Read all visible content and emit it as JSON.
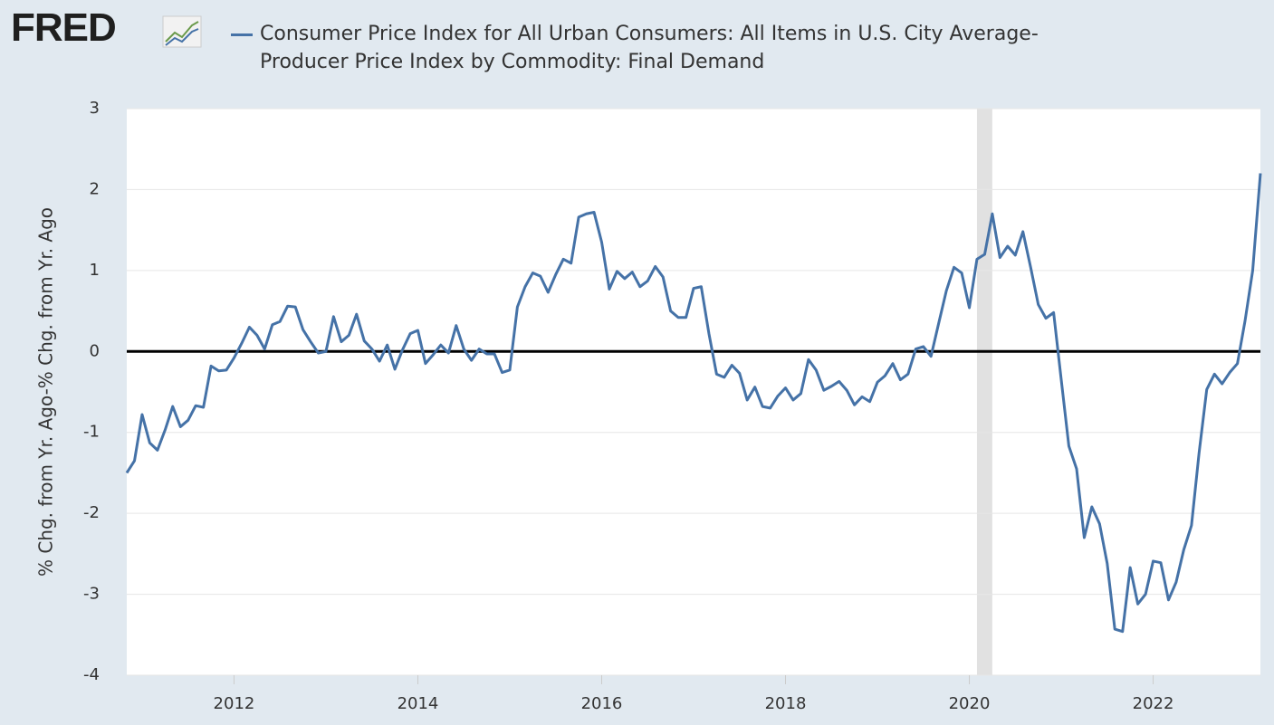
{
  "logo": "FRED",
  "chart_data": {
    "type": "line",
    "y_axis_label": "% Chg. from Yr. Ago-% Chg. from Yr. Ago",
    "x": [
      2010.833,
      2010.917,
      2011.0,
      2011.083,
      2011.167,
      2011.25,
      2011.333,
      2011.417,
      2011.5,
      2011.583,
      2011.667,
      2011.75,
      2011.833,
      2011.917,
      2012.0,
      2012.083,
      2012.167,
      2012.25,
      2012.333,
      2012.417,
      2012.5,
      2012.583,
      2012.667,
      2012.75,
      2012.833,
      2012.917,
      2013.0,
      2013.083,
      2013.167,
      2013.25,
      2013.333,
      2013.417,
      2013.5,
      2013.583,
      2013.667,
      2013.75,
      2013.833,
      2013.917,
      2014.0,
      2014.083,
      2014.167,
      2014.25,
      2014.333,
      2014.417,
      2014.5,
      2014.583,
      2014.667,
      2014.75,
      2014.833,
      2014.917,
      2015.0,
      2015.083,
      2015.167,
      2015.25,
      2015.333,
      2015.417,
      2015.5,
      2015.583,
      2015.667,
      2015.75,
      2015.833,
      2015.917,
      2016.0,
      2016.083,
      2016.167,
      2016.25,
      2016.333,
      2016.417,
      2016.5,
      2016.583,
      2016.667,
      2016.75,
      2016.833,
      2016.917,
      2017.0,
      2017.083,
      2017.167,
      2017.25,
      2017.333,
      2017.417,
      2017.5,
      2017.583,
      2017.667,
      2017.75,
      2017.833,
      2017.917,
      2018.0,
      2018.083,
      2018.167,
      2018.25,
      2018.333,
      2018.417,
      2018.5,
      2018.583,
      2018.667,
      2018.75,
      2018.833,
      2018.917,
      2019.0,
      2019.083,
      2019.167,
      2019.25,
      2019.333,
      2019.417,
      2019.5,
      2019.583,
      2019.667,
      2019.75,
      2019.833,
      2019.917,
      2020.0,
      2020.083,
      2020.167,
      2020.25,
      2020.333,
      2020.417,
      2020.5,
      2020.583,
      2020.667,
      2020.75,
      2020.833,
      2020.917,
      2021.0,
      2021.083,
      2021.167,
      2021.25,
      2021.333,
      2021.417,
      2021.5,
      2021.583,
      2021.667,
      2021.75,
      2021.833,
      2021.917,
      2022.0,
      2022.083,
      2022.167,
      2022.25,
      2022.333,
      2022.417,
      2022.5,
      2022.583,
      2022.667,
      2022.75,
      2022.833,
      2022.917,
      2023.0,
      2023.083,
      2023.167
    ],
    "series": [
      {
        "name": "Consumer Price Index for All Urban Consumers: All Items in U.S. City Average-Producer Price Index by Commodity: Final Demand",
        "color": "#4572a7",
        "values": [
          -1.5,
          -1.35,
          -0.78,
          -1.13,
          -1.22,
          -0.97,
          -0.68,
          -0.93,
          -0.85,
          -0.67,
          -0.69,
          -0.18,
          -0.24,
          -0.23,
          -0.08,
          0.1,
          0.3,
          0.2,
          0.03,
          0.33,
          0.37,
          0.56,
          0.55,
          0.27,
          0.12,
          -0.02,
          0.0,
          0.43,
          0.12,
          0.2,
          0.46,
          0.13,
          0.03,
          -0.12,
          0.08,
          -0.22,
          0.02,
          0.22,
          0.26,
          -0.15,
          -0.04,
          0.08,
          -0.02,
          0.32,
          0.03,
          -0.11,
          0.03,
          -0.03,
          -0.03,
          -0.26,
          -0.23,
          0.55,
          0.8,
          0.97,
          0.93,
          0.73,
          0.95,
          1.14,
          1.09,
          1.66,
          1.7,
          1.72,
          1.35,
          0.77,
          0.99,
          0.9,
          0.98,
          0.8,
          0.87,
          1.05,
          0.92,
          0.5,
          0.42,
          0.42,
          0.78,
          0.8,
          0.22,
          -0.28,
          -0.32,
          -0.17,
          -0.27,
          -0.6,
          -0.44,
          -0.68,
          -0.7,
          -0.55,
          -0.45,
          -0.6,
          -0.52,
          -0.1,
          -0.23,
          -0.48,
          -0.43,
          -0.37,
          -0.48,
          -0.66,
          -0.56,
          -0.62,
          -0.38,
          -0.3,
          -0.15,
          -0.35,
          -0.28,
          0.03,
          0.06,
          -0.06,
          0.35,
          0.75,
          1.04,
          0.97,
          0.54,
          1.14,
          1.2,
          1.7,
          1.16,
          1.3,
          1.19,
          1.48,
          1.04,
          0.58,
          0.41,
          0.48,
          -0.35,
          -1.17,
          -1.45,
          -2.3,
          -1.92,
          -2.13,
          -2.62,
          -3.43,
          -3.46,
          -2.67,
          -3.12,
          -3.0,
          -2.59,
          -2.61,
          -3.07,
          -2.85,
          -2.45,
          -2.15,
          -1.25,
          -0.47,
          -0.28,
          -0.4,
          -0.26,
          -0.15,
          0.38,
          1.0,
          2.2
        ]
      }
    ],
    "recessions": [
      [
        2020.083,
        2020.25
      ]
    ],
    "xlim": [
      2010.833,
      2023.167
    ],
    "xticks": [
      2012,
      2014,
      2016,
      2018,
      2020,
      2022
    ],
    "ylim": [
      -4,
      3
    ],
    "yticks": [
      -4,
      -3,
      -2,
      -1,
      0,
      1,
      2,
      3
    ],
    "zero_line": true,
    "grid": true
  }
}
